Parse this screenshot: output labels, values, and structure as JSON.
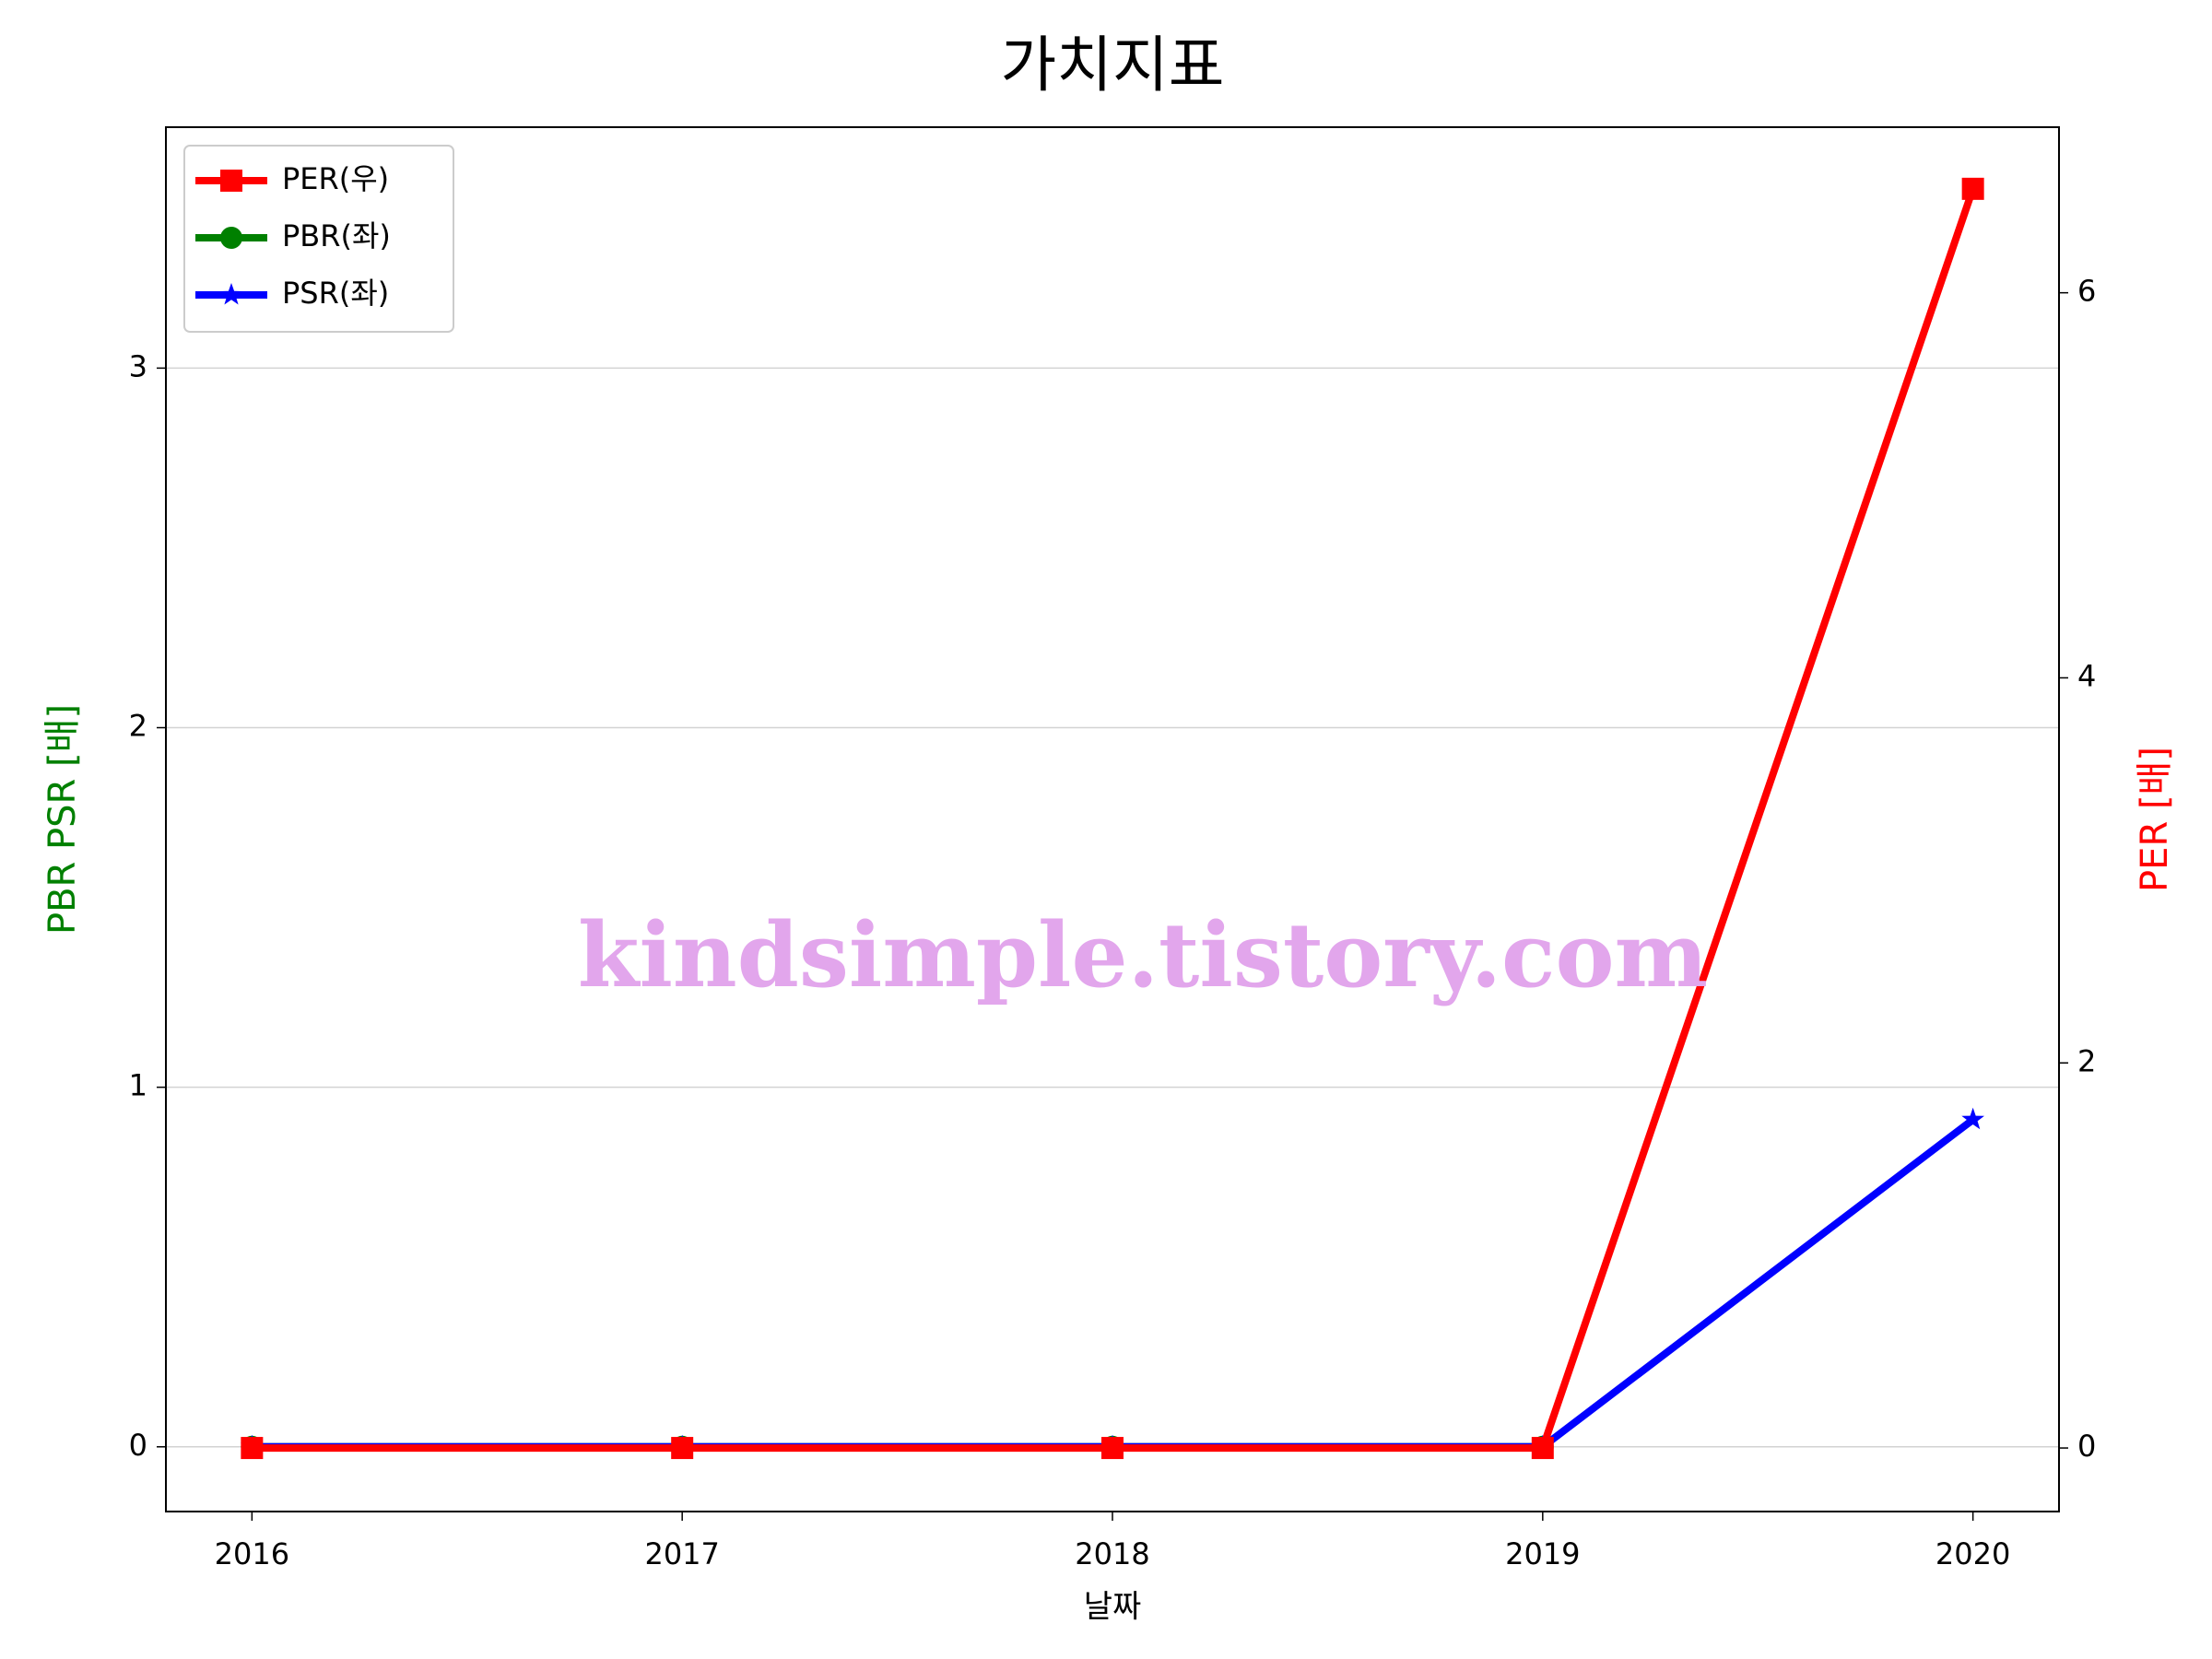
{
  "chart_data": {
    "type": "line",
    "title": "가치지표",
    "x_label": "날짜",
    "y_label": "PBR PSR [배]",
    "y2_label": "PER [배]",
    "y_label_color": "#008000",
    "y2_label_color": "#ff0000",
    "x": [
      2016,
      2017,
      2018,
      2019,
      2020
    ],
    "xlim": [
      2015.8,
      2020.2
    ],
    "xticks": [
      2016,
      2017,
      2018,
      2019,
      2020
    ],
    "ylim": [
      -0.18,
      3.67
    ],
    "yticks": [
      0,
      1,
      2,
      3
    ],
    "y2lim": [
      -0.33,
      6.86
    ],
    "y2ticks": [
      0,
      2,
      4,
      6
    ],
    "grid": true,
    "legend": "upper left",
    "annotation": "kindsimple.tistory.com",
    "series": [
      {
        "name": "PER(우)",
        "color": "#ff0000",
        "marker": "square",
        "axis": "y2",
        "values": [
          0,
          0,
          0,
          0,
          6.54
        ]
      },
      {
        "name": "PBR(좌)",
        "color": "#008000",
        "marker": "circle",
        "values": [
          0,
          0,
          0,
          0,
          null
        ]
      },
      {
        "name": "PSR(좌)",
        "color": "#0000ff",
        "marker": "star",
        "values": [
          0,
          0,
          0,
          0,
          0.91
        ]
      }
    ]
  }
}
